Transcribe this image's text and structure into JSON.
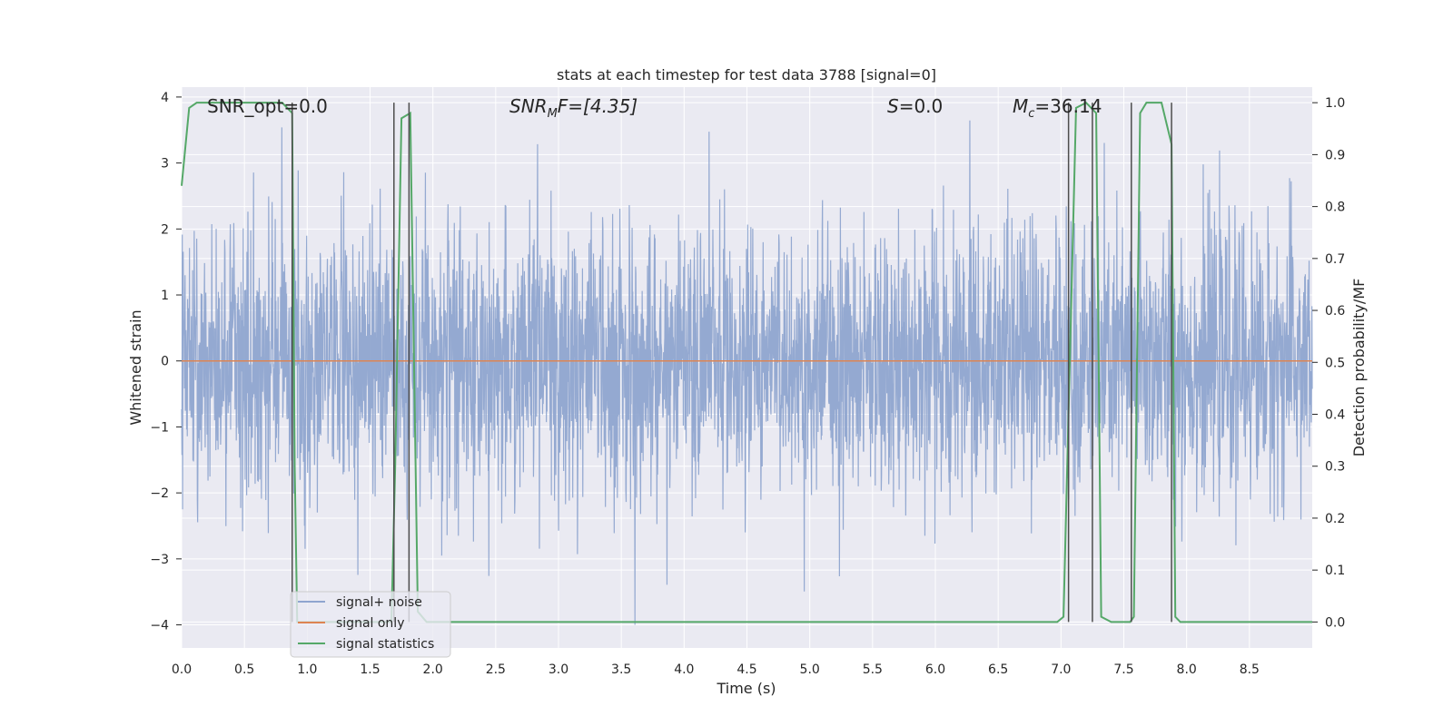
{
  "chart_data": {
    "type": "line",
    "title": "stats at each timestep for test data 3788 [signal=0]",
    "xlabel": "Time (s)",
    "ylabel_left": "Whitened strain",
    "ylabel_right": "Detection probability/MF",
    "xlim": [
      0,
      9
    ],
    "ylim_left": [
      -4.35,
      4.15
    ],
    "ylim_right": [
      -0.05,
      1.03
    ],
    "x_ticks": [
      0.0,
      0.5,
      1.0,
      1.5,
      2.0,
      2.5,
      3.0,
      3.5,
      4.0,
      4.5,
      5.0,
      5.5,
      6.0,
      6.5,
      7.0,
      7.5,
      8.0,
      8.5
    ],
    "x_tick_labels": [
      "0.0",
      "0.5",
      "1.0",
      "1.5",
      "2.0",
      "2.5",
      "3.0",
      "3.5",
      "4.0",
      "4.5",
      "5.0",
      "5.5",
      "6.0",
      "6.5",
      "7.0",
      "7.5",
      "8.0",
      "8.5"
    ],
    "y_left_ticks": [
      4,
      3,
      2,
      1,
      0,
      -1,
      -2,
      -3,
      -4
    ],
    "y_left_tick_labels": [
      "4",
      "3",
      "2",
      "1",
      "0",
      "−1",
      "−2",
      "−3",
      "−4"
    ],
    "y_right_ticks": [
      1.0,
      0.9,
      0.8,
      0.7,
      0.6,
      0.5,
      0.4,
      0.3,
      0.2,
      0.1,
      0.0
    ],
    "y_right_tick_labels": [
      "1.0",
      "0.9",
      "0.8",
      "0.7",
      "0.6",
      "0.5",
      "0.4",
      "0.3",
      "0.2",
      "0.1",
      "0.0"
    ],
    "grid": true,
    "legend": {
      "placement": "lower-left",
      "entries": [
        "signal+ noise",
        "signal only",
        "signal statistics"
      ]
    },
    "annotations": {
      "snr_opt": "SNR_opt=0.0",
      "snr_mf_name": "SNR",
      "snr_mf_sub": "M",
      "snr_mf_rest": "F=[4.35]",
      "s_name": "S",
      "s_rest": "=0.0",
      "mc_name": "M",
      "mc_sub": "c",
      "mc_rest": "=36.14"
    },
    "series": [
      {
        "name": "signal+ noise",
        "axis": "left",
        "color": "#8fa5cf",
        "kind": "noise",
        "t_range": [
          0,
          9
        ],
        "sigma": 1.0
      },
      {
        "name": "signal only",
        "axis": "left",
        "color": "#dd8452",
        "x": [
          0,
          9
        ],
        "y": [
          0,
          0
        ]
      },
      {
        "name": "signal statistics",
        "axis": "right",
        "color": "#55a868",
        "x": [
          0.0,
          0.06,
          0.12,
          0.8,
          0.88,
          0.9,
          0.92,
          0.95,
          1.67,
          1.7,
          1.75,
          1.82,
          1.88,
          1.95,
          6.9,
          6.97,
          7.02,
          7.07,
          7.12,
          7.2,
          7.28,
          7.32,
          7.4,
          7.55,
          7.58,
          7.63,
          7.68,
          7.8,
          7.88,
          7.91,
          7.95,
          9.0
        ],
        "y": [
          0.84,
          0.99,
          1.0,
          1.0,
          0.98,
          0.3,
          0.0,
          0.0,
          0.0,
          0.3,
          0.97,
          0.98,
          0.02,
          0.0,
          0.0,
          0.0,
          0.01,
          0.5,
          0.99,
          1.0,
          0.98,
          0.01,
          0.0,
          0.0,
          0.01,
          0.98,
          1.0,
          1.0,
          0.92,
          0.01,
          0.0,
          0.0
        ]
      }
    ],
    "vertical_markers": {
      "color": "#4d4d4d",
      "x": [
        0.88,
        1.69,
        1.81,
        7.06,
        7.25,
        7.56,
        7.88
      ]
    }
  },
  "colors": {
    "plot_background": "#eaeaf2",
    "grid": "#ffffff",
    "text": "#262626"
  }
}
